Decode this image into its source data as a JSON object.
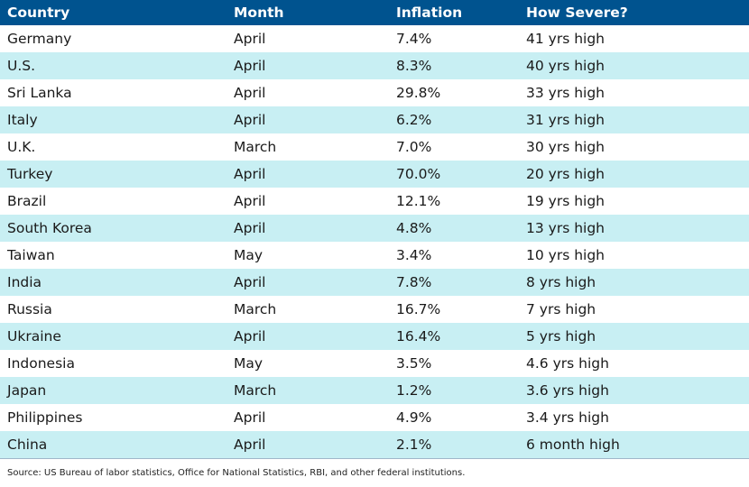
{
  "colors": {
    "header_bg": "#00538f",
    "header_text": "#ffffff",
    "row_alt_bg": "#c8eff3",
    "row_bg": "#ffffff"
  },
  "chart_data": {
    "type": "table",
    "columns": [
      "Country",
      "Month",
      "Inflation",
      "How Severe?"
    ],
    "rows": [
      [
        "Germany",
        "April",
        "7.4%",
        "41 yrs high"
      ],
      [
        "U.S.",
        "April",
        "8.3%",
        "40 yrs high"
      ],
      [
        "Sri Lanka",
        "April",
        "29.8%",
        "33 yrs high"
      ],
      [
        "Italy",
        "April",
        "6.2%",
        "31 yrs high"
      ],
      [
        "U.K.",
        "March",
        "7.0%",
        "30 yrs high"
      ],
      [
        "Turkey",
        "April",
        "70.0%",
        "20 yrs high"
      ],
      [
        "Brazil",
        "April",
        "12.1%",
        "19 yrs high"
      ],
      [
        "South Korea",
        "April",
        "4.8%",
        "13 yrs high"
      ],
      [
        "Taiwan",
        "May",
        "3.4%",
        "10 yrs high"
      ],
      [
        "India",
        "April",
        "7.8%",
        "8 yrs high"
      ],
      [
        "Russia",
        "March",
        "16.7%",
        "7 yrs high"
      ],
      [
        "Ukraine",
        "April",
        "16.4%",
        "5 yrs high"
      ],
      [
        "Indonesia",
        "May",
        "3.5%",
        "4.6 yrs high"
      ],
      [
        "Japan",
        "March",
        "1.2%",
        "3.6 yrs high"
      ],
      [
        "Philippines",
        "April",
        "4.9%",
        "3.4 yrs high"
      ],
      [
        "China",
        "April",
        "2.1%",
        "6 month high"
      ]
    ],
    "source": "Source: US Bureau of labor statistics, Office for National Statistics, RBI, and other federal institutions."
  }
}
